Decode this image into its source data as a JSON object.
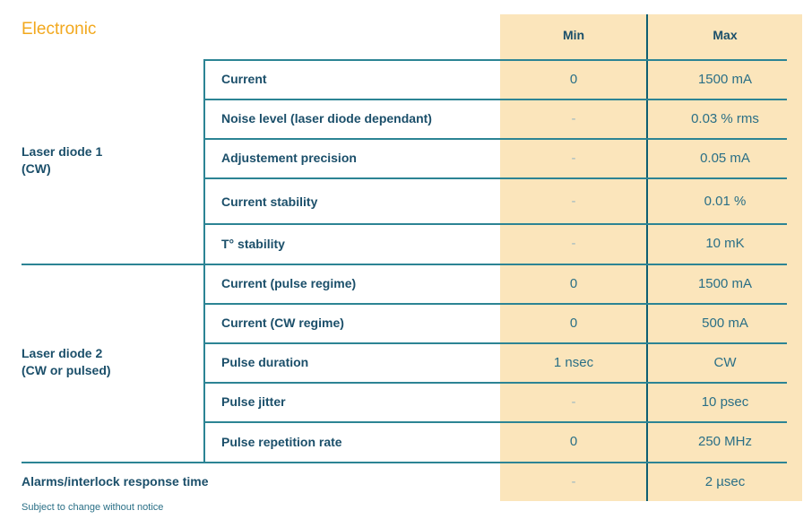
{
  "title": "Electronic",
  "headers": {
    "min": "Min",
    "max": "Max"
  },
  "groups": [
    {
      "line1": "Laser diode 1",
      "line2": "(CW)"
    },
    {
      "line1": "Laser diode 2",
      "line2": "(CW or pulsed)"
    }
  ],
  "rows": [
    {
      "param": "Current",
      "min": "0",
      "max": "1500 mA"
    },
    {
      "param": "Noise level (laser diode dependant)",
      "min": "-",
      "max": "0.03 % rms"
    },
    {
      "param": "Adjustement precision",
      "min": "-",
      "max": "0.05 mA"
    },
    {
      "param": "Current stability",
      "min": "-",
      "max": "0.01 %"
    },
    {
      "param": "T° stability",
      "min": "-",
      "max": "10 mK"
    },
    {
      "param": "Current (pulse regime)",
      "min": "0",
      "max": "1500 mA"
    },
    {
      "param": "Current (CW regime)",
      "min": "0",
      "max": "500 mA"
    },
    {
      "param": "Pulse duration",
      "min": "1 nsec",
      "max": "CW"
    },
    {
      "param": "Pulse jitter",
      "min": "-",
      "max": "10 psec"
    },
    {
      "param": "Pulse repetition rate",
      "min": "0",
      "max": "250 MHz"
    },
    {
      "param": "Alarms/interlock response time",
      "min": "-",
      "max": "2 µsec"
    }
  ],
  "note": "Subject to change without notice"
}
